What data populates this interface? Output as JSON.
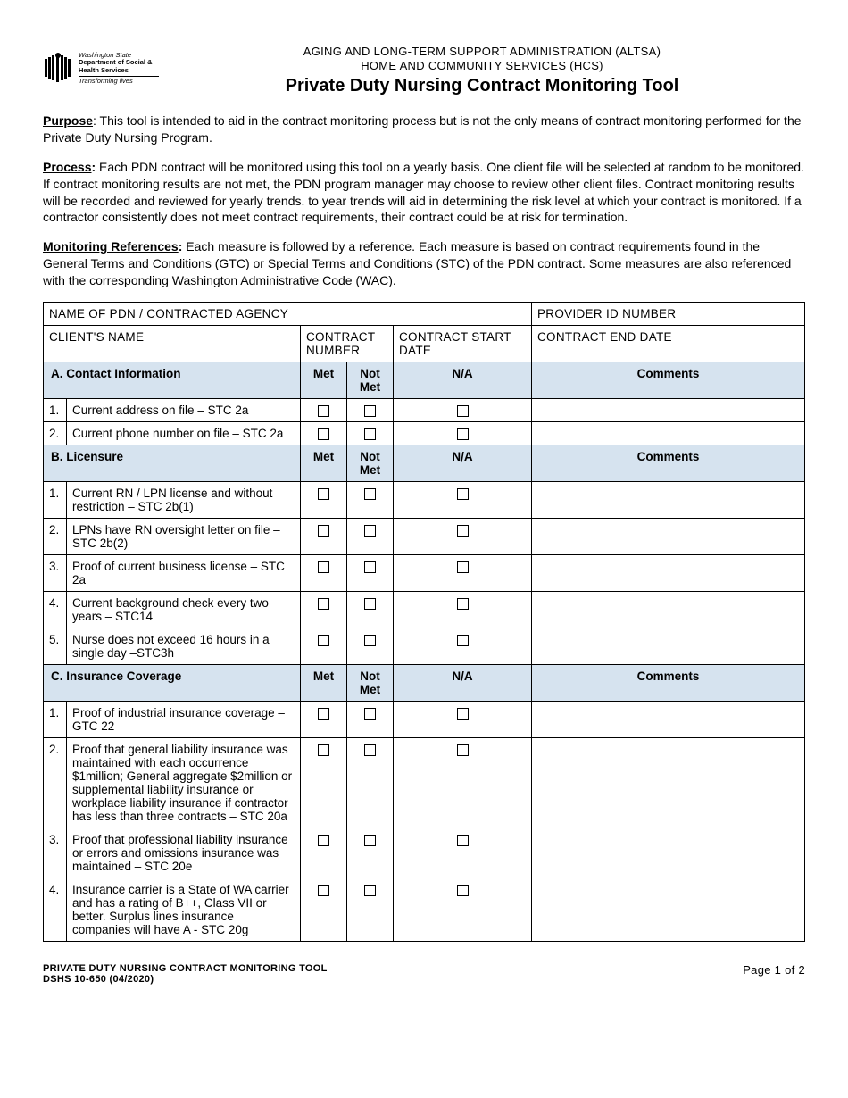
{
  "logo": {
    "state": "Washington State",
    "dept": "Department of Social\n& Health Services",
    "tagline": "Transforming lives"
  },
  "header": {
    "line1": "AGING AND LONG-TERM SUPPORT ADMINISTRATION (ALTSA)",
    "line2": "HOME AND COMMUNITY SERVICES (HCS)",
    "title": "Private Duty Nursing Contract Monitoring Tool"
  },
  "intro": {
    "purpose_label": "Purpose",
    "purpose_text": ": This tool is intended to aid in the contract monitoring process but is not the only means of contract monitoring performed for the Private Duty Nursing Program.",
    "process_label": "Process",
    "process_text": "  Each PDN contract will be monitored using this tool on a yearly basis.  One client file will be selected at random to be monitored.  If contract monitoring results are not met, the PDN program manager may choose to review other client files.  Contract monitoring results will be recorded and reviewed for yearly trends.   to year trends will aid in determining the risk level at which your contract is monitored.  If a contractor consistently does not meet contract requirements, their contract could be at risk for termination.",
    "refs_label": "Monitoring References",
    "refs_text": "  Each measure is followed by a reference.  Each measure is based on contract requirements found in the General Terms and Conditions (GTC) or Special Terms and Conditions (STC) of the PDN contract.  Some measures are also referenced with the corresponding Washington Administrative Code (WAC)."
  },
  "info_labels": {
    "agency": "NAME OF PDN / CONTRACTED AGENCY",
    "provider_id": "PROVIDER ID NUMBER",
    "client": "CLIENT'S NAME",
    "contract_no": "CONTRACT NUMBER",
    "start": "CONTRACT START DATE",
    "end": "CONTRACT END DATE"
  },
  "col_headers": {
    "met": "Met",
    "not_met": "Not Met",
    "na": "N/A",
    "comments": "Comments"
  },
  "sections": [
    {
      "id": "A",
      "title": "A.  Contact Information",
      "rows": [
        {
          "n": "1.",
          "text": "Current address on file – STC 2a"
        },
        {
          "n": "2.",
          "text": "Current phone number on file – STC 2a"
        }
      ]
    },
    {
      "id": "B",
      "title": "B.  Licensure",
      "rows": [
        {
          "n": "1.",
          "text": "Current RN / LPN license and without restriction – STC 2b(1)"
        },
        {
          "n": "2.",
          "text": "LPNs have RN oversight letter on file – STC 2b(2)"
        },
        {
          "n": "3.",
          "text": "Proof of current business license – STC 2a"
        },
        {
          "n": "4.",
          "text": "Current background check every two years – STC14"
        },
        {
          "n": "5.",
          "text": "Nurse does not exceed 16 hours in a single day –STC3h"
        }
      ]
    },
    {
      "id": "C",
      "title": "C.  Insurance Coverage",
      "rows": [
        {
          "n": "1.",
          "text": "Proof of industrial insurance coverage – GTC 22"
        },
        {
          "n": "2.",
          "text": "Proof that general liability insurance was maintained with each occurrence $1million; General aggregate $2million or supplemental liability insurance or workplace liability insurance if contractor has less than three contracts – STC 20a"
        },
        {
          "n": "3.",
          "text": "Proof that professional liability insurance or errors and omissions insurance was maintained – STC 20e"
        },
        {
          "n": "4.",
          "text": "Insurance carrier is a State of WA carrier and has a rating of B++, Class VII or better. Surplus lines insurance companies will have A -  STC 20g"
        }
      ]
    }
  ],
  "footer": {
    "title": "PRIVATE DUTY NURSING CONTRACT MONITORING TOOL",
    "form": "DSHS 10-650 (04/2020)",
    "page": "Page 1 of 2"
  },
  "colors": {
    "section_bg": "#d6e3ef",
    "border": "#000000",
    "text": "#000000"
  }
}
